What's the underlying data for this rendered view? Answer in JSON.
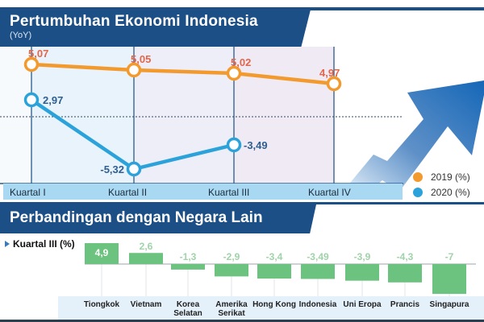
{
  "header": {
    "title": "Pertumbuhan Ekonomi Indonesia",
    "subtitle": "(YoY)"
  },
  "legend": {
    "items": [
      {
        "label": "2019 (%)",
        "color": "#f29a2e"
      },
      {
        "label": "2020 (%)",
        "color": "#2ba3da"
      }
    ]
  },
  "section2": {
    "title": "Perbandingan dengan Negara Lain",
    "subtitle": "Kuartal III (%)"
  },
  "colors": {
    "brand_navy": "#1b4f86",
    "series_2019": "#f29a2e",
    "series_2019_label": "#e2674a",
    "series_2020": "#2ba3da",
    "series_2020_label": "#2f5f92",
    "bar_green": "#6cc27f",
    "bar_value_label": "#9fd3a8",
    "axis_band": "#a9d8f2"
  },
  "chart_data": [
    {
      "type": "line",
      "title": "Pertumbuhan Ekonomi Indonesia",
      "subtitle": "(YoY)",
      "xlabel": "",
      "ylabel": "",
      "categories": [
        "Kuartal I",
        "Kuartal II",
        "Kuartal III",
        "Kuartal IV"
      ],
      "series": [
        {
          "name": "2019 (%)",
          "values": [
            5.07,
            5.05,
            5.02,
            4.97
          ],
          "labels": [
            "5,07",
            "5,05",
            "5,02",
            "4,97"
          ]
        },
        {
          "name": "2020 (%)",
          "values": [
            2.97,
            -5.32,
            -3.49,
            null
          ],
          "labels": [
            "2,97",
            "-5,32",
            "-3,49",
            ""
          ]
        }
      ],
      "grid": false,
      "zero_line": "dotted",
      "legend_position": "bottom-right"
    },
    {
      "type": "bar",
      "title": "Perbandingan dengan Negara Lain",
      "subtitle": "Kuartal III (%)",
      "categories": [
        "Tiongkok",
        "Vietnam",
        "Korea Selatan",
        "Amerika Serikat",
        "Hong Kong",
        "Indonesia",
        "Uni Eropa",
        "Prancis",
        "Singapura"
      ],
      "category_lines": [
        [
          "Tiongkok"
        ],
        [
          "Vietnam"
        ],
        [
          "Korea",
          "Selatan"
        ],
        [
          "Amerika",
          "Serikat"
        ],
        [
          "Hong Kong"
        ],
        [
          "Indonesia"
        ],
        [
          "Uni Eropa"
        ],
        [
          "Prancis"
        ],
        [
          "Singapura"
        ]
      ],
      "values": [
        4.9,
        2.6,
        -1.3,
        -2.9,
        -3.4,
        -3.49,
        -3.9,
        -4.3,
        -7
      ],
      "labels": [
        "4,9",
        "2,6",
        "-1,3",
        "-2,9",
        "-3,4",
        "-3,49",
        "-3,9",
        "-4,3",
        "-7"
      ],
      "legend_position": "none"
    }
  ]
}
